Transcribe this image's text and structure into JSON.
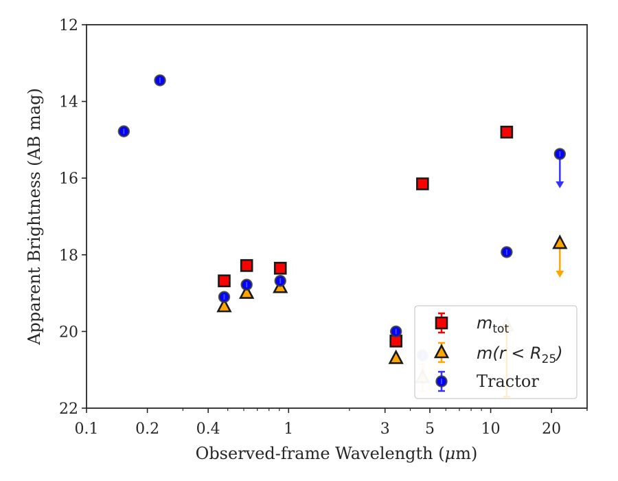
{
  "chart_data": {
    "type": "scatter",
    "xlabel_prefix": "Observed-frame Wavelength (",
    "xlabel_mu": "μ",
    "xlabel_suffix": "m)",
    "ylabel": "Apparent Brightness (AB mag)",
    "xscale": "log",
    "xlim": [
      0.1,
      30
    ],
    "ylim": [
      22,
      12
    ],
    "y_inverted": true,
    "grid": false,
    "legend_position": "lower right",
    "xticks": [
      {
        "value": 0.1,
        "label": "0.1"
      },
      {
        "value": 0.2,
        "label": "0.2"
      },
      {
        "value": 0.4,
        "label": "0.4"
      },
      {
        "value": 1,
        "label": "1"
      },
      {
        "value": 3,
        "label": "3"
      },
      {
        "value": 5,
        "label": "5"
      },
      {
        "value": 10,
        "label": "10"
      },
      {
        "value": 20,
        "label": "20"
      }
    ],
    "yticks": [
      {
        "value": 12,
        "label": "12"
      },
      {
        "value": 14,
        "label": "14"
      },
      {
        "value": 16,
        "label": "16"
      },
      {
        "value": 18,
        "label": "18"
      },
      {
        "value": 20,
        "label": "20"
      },
      {
        "value": 22,
        "label": "22"
      }
    ],
    "series": [
      {
        "key": "mtot",
        "legend_main": "m",
        "legend_sub": "tot",
        "marker": "square",
        "color": "#ff0000",
        "errcolor": "#ff0000",
        "points": [
          {
            "x": 0.48,
            "y": 18.68
          },
          {
            "x": 0.62,
            "y": 18.28
          },
          {
            "x": 0.91,
            "y": 18.35
          },
          {
            "x": 3.4,
            "y": 20.25
          },
          {
            "x": 4.6,
            "y": 16.15
          },
          {
            "x": 12.0,
            "y": 14.8
          }
        ]
      },
      {
        "key": "mr25",
        "legend_main": "m(r < R",
        "legend_sub": "25",
        "legend_end": ")",
        "marker": "triangle",
        "color": "#ffa500",
        "errcolor": "#ffa500",
        "points": [
          {
            "x": 0.48,
            "y": 19.35
          },
          {
            "x": 0.62,
            "y": 19.0
          },
          {
            "x": 0.91,
            "y": 18.85
          },
          {
            "x": 3.4,
            "y": 20.7
          },
          {
            "x": 4.6,
            "y": 21.2,
            "faded": true,
            "yerr": 0.35
          },
          {
            "x": 12.0,
            "y": 19.85,
            "faded": true,
            "err_low": 21.7
          },
          {
            "x": 22.0,
            "y": 17.7,
            "upper_limit": true
          }
        ]
      },
      {
        "key": "tractor",
        "legend_main": "Tractor",
        "marker": "circle",
        "color": "#0000ff",
        "errcolor": "#3333ff",
        "points": [
          {
            "x": 0.153,
            "y": 14.78
          },
          {
            "x": 0.231,
            "y": 13.45
          },
          {
            "x": 0.48,
            "y": 19.1
          },
          {
            "x": 0.62,
            "y": 18.78
          },
          {
            "x": 0.91,
            "y": 18.68
          },
          {
            "x": 3.4,
            "y": 20.0
          },
          {
            "x": 4.6,
            "y": 20.62,
            "faded": true
          },
          {
            "x": 12.0,
            "y": 17.93
          },
          {
            "x": 22.0,
            "y": 15.37,
            "upper_limit": true
          }
        ]
      }
    ]
  }
}
